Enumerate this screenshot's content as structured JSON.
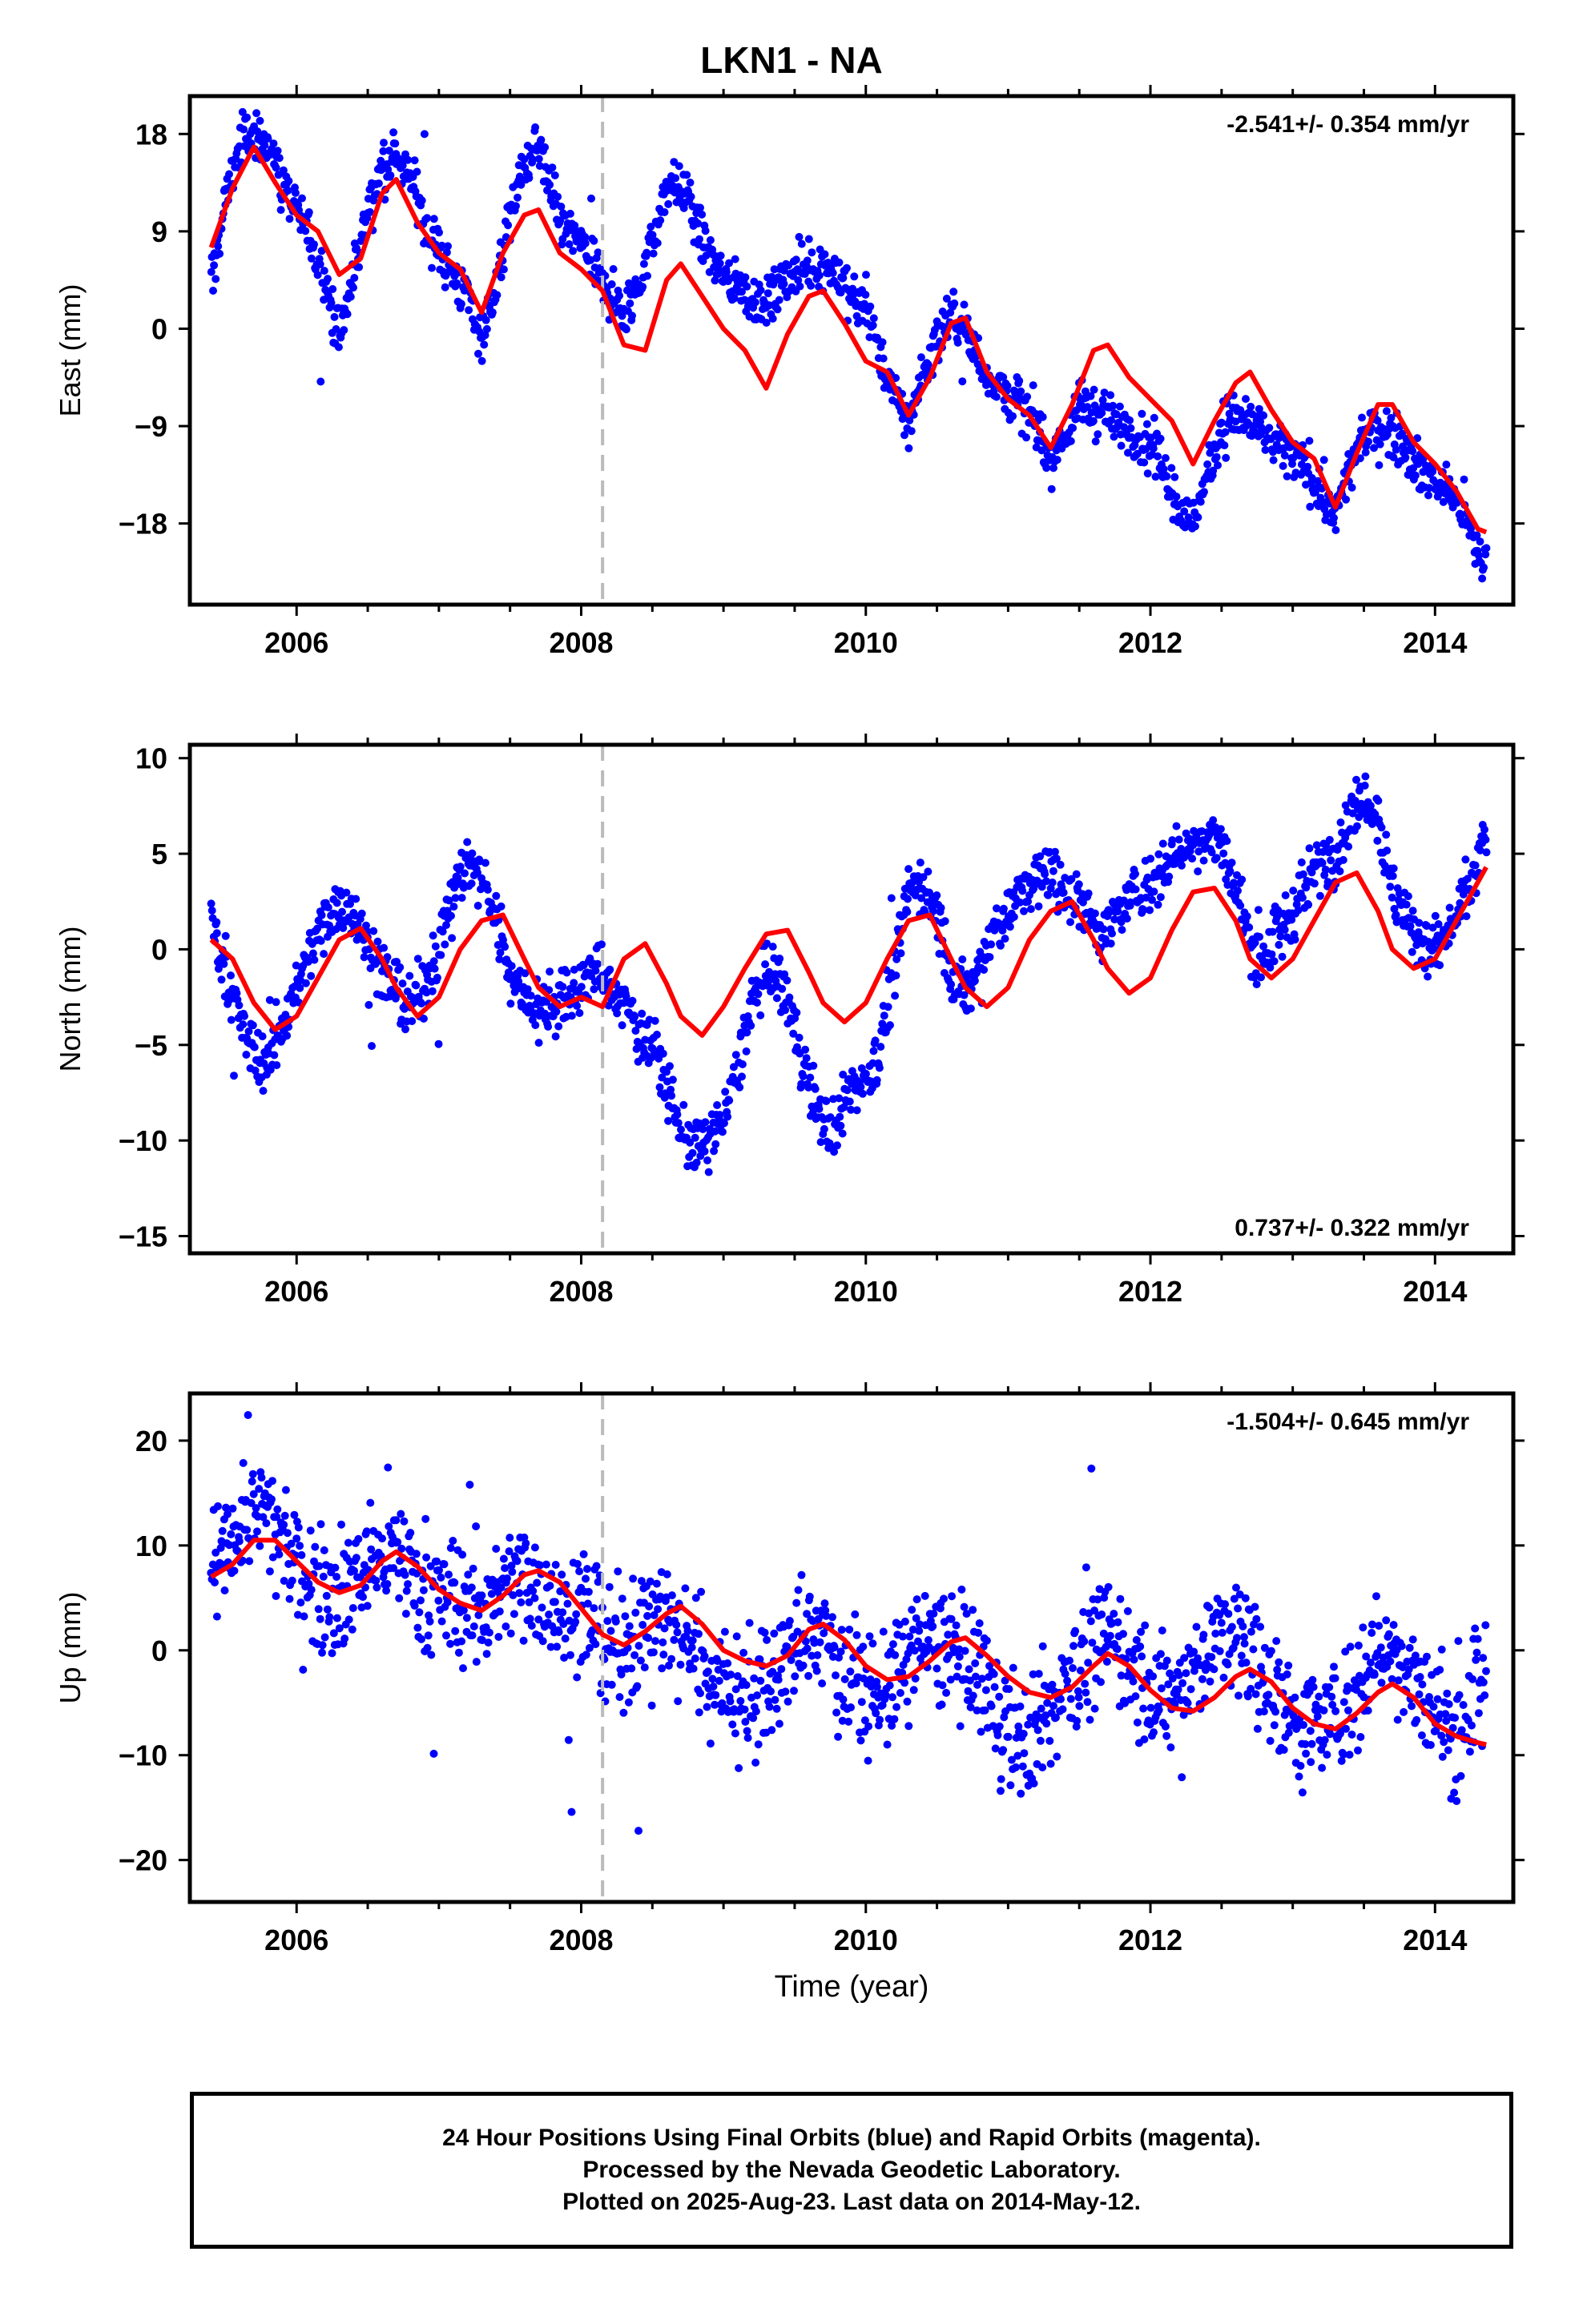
{
  "title": "LKN1 - NA",
  "xlabel": "Time (year)",
  "footer": {
    "line1": "24 Hour Positions Using Final Orbits (blue) and Rapid Orbits (magenta).",
    "line2": "Processed by the Nevada Geodetic Laboratory.",
    "line3": "Plotted on 2025-Aug-23. Last data on 2014-May-12."
  },
  "colors": {
    "data": "#0000ff",
    "model": "#ff0000",
    "break_line": "#bbbbbb",
    "axis": "#000000"
  },
  "chart_data": [
    {
      "type": "scatter",
      "panel": "east",
      "ylabel": "East (mm)",
      "rate_label": "-2.541+/- 0.354 mm/yr",
      "rate_label_position": "top-right",
      "xlim": [
        2005.25,
        2014.55
      ],
      "ylim": [
        -25.5,
        21.5
      ],
      "x_ticks": [
        2006,
        2008,
        2010,
        2012,
        2014
      ],
      "y_ticks": [
        18,
        9,
        0,
        -9,
        -18
      ],
      "y_tick_labels": [
        "18",
        "9",
        "0",
        "-9",
        "-18"
      ],
      "break_epoch": 2008.15,
      "data_range": [
        2005.4,
        2014.36
      ],
      "model_series": {
        "name": "model",
        "x": [
          2005.4,
          2005.55,
          2005.7,
          2005.85,
          2006.0,
          2006.15,
          2006.3,
          2006.45,
          2006.6,
          2006.7,
          2006.85,
          2007.0,
          2007.15,
          2007.3,
          2007.45,
          2007.6,
          2007.7,
          2007.85,
          2008.0,
          2008.15,
          2008.3,
          2008.45,
          2008.6,
          2008.7,
          2008.85,
          2009.0,
          2009.15,
          2009.3,
          2009.45,
          2009.6,
          2009.7,
          2009.85,
          2010.0,
          2010.15,
          2010.3,
          2010.45,
          2010.6,
          2010.7,
          2010.85,
          2011.0,
          2011.15,
          2011.3,
          2011.45,
          2011.6,
          2011.7,
          2011.85,
          2012.0,
          2012.15,
          2012.3,
          2012.45,
          2012.6,
          2012.7,
          2012.85,
          2013.0,
          2013.15,
          2013.3,
          2013.45,
          2013.6,
          2013.7,
          2013.85,
          2014.0,
          2014.15,
          2014.3,
          2014.36
        ],
        "y": [
          7.5,
          13.0,
          16.8,
          13.5,
          10.5,
          9.0,
          5.0,
          6.5,
          12.5,
          13.8,
          9.8,
          7.0,
          5.5,
          1.5,
          7.0,
          10.5,
          11.0,
          7.0,
          5.5,
          3.5,
          -1.5,
          -2.0,
          4.5,
          6.0,
          3.0,
          0.0,
          -2.0,
          -5.5,
          -0.5,
          3.0,
          3.5,
          0.5,
          -3.0,
          -4.0,
          -8.0,
          -4.5,
          0.5,
          1.0,
          -4.0,
          -6.5,
          -8.0,
          -11.0,
          -7.0,
          -2.0,
          -1.5,
          -4.5,
          -6.5,
          -8.5,
          -12.5,
          -8.5,
          -5.0,
          -4.0,
          -7.5,
          -10.5,
          -12.0,
          -16.5,
          -11.5,
          -7.0,
          -7.0,
          -10.5,
          -12.5,
          -15.0,
          -18.5,
          -18.8
        ]
      },
      "data_series": {
        "name": "data",
        "x": [
          2005.4,
          2005.5,
          2005.6,
          2005.7,
          2005.8,
          2005.9,
          2006.0,
          2006.1,
          2006.2,
          2006.3,
          2006.4,
          2006.5,
          2006.6,
          2006.7,
          2006.8,
          2006.9,
          2007.0,
          2007.1,
          2007.2,
          2007.3,
          2007.4,
          2007.5,
          2007.6,
          2007.7,
          2007.8,
          2007.9,
          2008.0,
          2008.1,
          2008.2,
          2008.3,
          2008.4,
          2008.5,
          2008.6,
          2008.7,
          2008.8,
          2008.9,
          2009.0,
          2009.1,
          2009.2,
          2009.3,
          2009.4,
          2009.5,
          2009.6,
          2009.7,
          2009.8,
          2009.9,
          2010.0,
          2010.1,
          2010.2,
          2010.3,
          2010.4,
          2010.5,
          2010.6,
          2010.7,
          2010.8,
          2010.9,
          2011.0,
          2011.1,
          2011.2,
          2011.3,
          2011.4,
          2011.5,
          2011.6,
          2011.7,
          2011.8,
          2011.9,
          2012.0,
          2012.1,
          2012.2,
          2012.3,
          2012.4,
          2012.5,
          2012.6,
          2012.7,
          2012.8,
          2012.9,
          2013.0,
          2013.1,
          2013.2,
          2013.3,
          2013.4,
          2013.5,
          2013.6,
          2013.7,
          2013.8,
          2013.9,
          2014.0,
          2014.1,
          2014.2,
          2014.3,
          2014.36
        ],
        "y": [
          4.0,
          12.0,
          17.0,
          18.0,
          17.0,
          14.0,
          11.0,
          8.0,
          5.0,
          -1.0,
          5.0,
          11.0,
          15.0,
          16.0,
          14.0,
          10.0,
          7.0,
          5.0,
          3.0,
          -1.0,
          4.0,
          10.0,
          15.0,
          17.0,
          12.0,
          9.0,
          8.0,
          5.0,
          3.0,
          1.0,
          4.0,
          8.0,
          13.0,
          13.5,
          10.0,
          7.0,
          5.0,
          4.0,
          3.0,
          2.0,
          4.0,
          5.0,
          6.0,
          6.0,
          5.0,
          3.0,
          2.0,
          -2.0,
          -6.0,
          -9.0,
          -4.0,
          -1.0,
          1.0,
          0.0,
          -3.0,
          -5.0,
          -6.0,
          -7.0,
          -9.0,
          -12.0,
          -10.0,
          -7.0,
          -7.5,
          -8.0,
          -9.0,
          -10.0,
          -11.0,
          -13.0,
          -17.0,
          -18.0,
          -13.0,
          -9.0,
          -8.0,
          -8.5,
          -10.0,
          -11.0,
          -12.0,
          -13.0,
          -15.0,
          -17.5,
          -13.0,
          -10.0,
          -9.0,
          -9.5,
          -11.0,
          -13.0,
          -14.0,
          -15.0,
          -17.0,
          -21.0,
          -21.5
        ]
      }
    },
    {
      "type": "scatter",
      "panel": "north",
      "ylabel": "North (mm)",
      "rate_label": "0.737+/- 0.322 mm/yr",
      "rate_label_position": "bottom-right",
      "xlim": [
        2005.25,
        2014.55
      ],
      "ylim": [
        -15.9,
        10.7
      ],
      "x_ticks": [
        2006,
        2008,
        2010,
        2012,
        2014
      ],
      "y_ticks": [
        10,
        5,
        0,
        -5,
        -10,
        -15
      ],
      "y_tick_labels": [
        "10",
        "5",
        "0",
        "-5",
        "-10",
        "-15"
      ],
      "break_epoch": 2008.15,
      "data_range": [
        2005.4,
        2014.36
      ],
      "model_series": {
        "name": "model",
        "x": [
          2005.4,
          2005.55,
          2005.7,
          2005.85,
          2006.0,
          2006.15,
          2006.3,
          2006.45,
          2006.6,
          2006.7,
          2006.85,
          2007.0,
          2007.15,
          2007.3,
          2007.45,
          2007.6,
          2007.7,
          2007.85,
          2008.0,
          2008.15,
          2008.3,
          2008.45,
          2008.6,
          2008.7,
          2008.85,
          2009.0,
          2009.15,
          2009.3,
          2009.45,
          2009.6,
          2009.7,
          2009.85,
          2010.0,
          2010.15,
          2010.3,
          2010.45,
          2010.6,
          2010.7,
          2010.85,
          2011.0,
          2011.15,
          2011.3,
          2011.45,
          2011.6,
          2011.7,
          2011.85,
          2012.0,
          2012.15,
          2012.3,
          2012.45,
          2012.6,
          2012.7,
          2012.85,
          2013.0,
          2013.15,
          2013.3,
          2013.45,
          2013.6,
          2013.7,
          2013.85,
          2014.0,
          2014.15,
          2014.3,
          2014.36
        ],
        "y": [
          0.5,
          -0.5,
          -2.8,
          -4.2,
          -3.5,
          -1.5,
          0.5,
          1.1,
          -0.5,
          -2.0,
          -3.5,
          -2.5,
          0.0,
          1.5,
          1.8,
          -0.5,
          -2.0,
          -3.0,
          -2.5,
          -3.0,
          -0.5,
          0.3,
          -1.8,
          -3.5,
          -4.5,
          -3.0,
          -1.0,
          0.8,
          1.0,
          -1.2,
          -2.8,
          -3.8,
          -2.8,
          -0.5,
          1.5,
          1.8,
          -0.5,
          -2.0,
          -3.0,
          -2.0,
          0.5,
          2.0,
          2.5,
          0.5,
          -1.0,
          -2.3,
          -1.5,
          1.0,
          3.0,
          3.2,
          1.5,
          -0.5,
          -1.5,
          -0.5,
          1.5,
          3.5,
          4.0,
          2.0,
          0.0,
          -1.0,
          -0.5,
          1.5,
          3.5,
          4.3
        ]
      },
      "data_series": {
        "name": "data",
        "x": [
          2005.4,
          2005.5,
          2005.6,
          2005.7,
          2005.8,
          2005.9,
          2006.0,
          2006.1,
          2006.2,
          2006.3,
          2006.4,
          2006.5,
          2006.6,
          2006.7,
          2006.8,
          2006.9,
          2007.0,
          2007.1,
          2007.2,
          2007.3,
          2007.4,
          2007.5,
          2007.6,
          2007.7,
          2007.8,
          2007.9,
          2008.0,
          2008.1,
          2008.2,
          2008.3,
          2008.4,
          2008.5,
          2008.6,
          2008.7,
          2008.8,
          2008.9,
          2009.0,
          2009.1,
          2009.2,
          2009.3,
          2009.4,
          2009.5,
          2009.6,
          2009.7,
          2009.8,
          2009.9,
          2010.0,
          2010.1,
          2010.2,
          2010.3,
          2010.4,
          2010.5,
          2010.6,
          2010.7,
          2010.8,
          2010.9,
          2011.0,
          2011.1,
          2011.2,
          2011.3,
          2011.4,
          2011.5,
          2011.6,
          2011.7,
          2011.8,
          2011.9,
          2012.0,
          2012.1,
          2012.2,
          2012.3,
          2012.4,
          2012.5,
          2012.6,
          2012.7,
          2012.8,
          2012.9,
          2013.0,
          2013.1,
          2013.2,
          2013.3,
          2013.4,
          2013.5,
          2013.6,
          2013.7,
          2013.8,
          2013.9,
          2014.0,
          2014.1,
          2014.2,
          2014.3,
          2014.36
        ],
        "y": [
          2.0,
          -1.0,
          -4.0,
          -5.5,
          -6.0,
          -4.0,
          -2.0,
          0.0,
          1.5,
          2.5,
          2.0,
          0.5,
          -1.5,
          -2.5,
          -3.0,
          -2.0,
          0.0,
          3.0,
          4.5,
          4.0,
          1.5,
          -1.0,
          -2.5,
          -3.0,
          -3.0,
          -2.5,
          -2.0,
          -1.0,
          -2.0,
          -3.0,
          -4.0,
          -5.0,
          -7.0,
          -9.5,
          -10.5,
          -10.0,
          -9.0,
          -6.0,
          -3.0,
          -1.0,
          -2.0,
          -4.0,
          -7.0,
          -9.0,
          -9.5,
          -7.0,
          -7.0,
          -5.0,
          -1.0,
          3.0,
          3.5,
          2.0,
          -1.5,
          -2.5,
          -1.0,
          1.0,
          2.0,
          3.0,
          3.5,
          4.0,
          3.0,
          2.5,
          1.5,
          1.0,
          2.0,
          3.0,
          3.5,
          4.5,
          5.0,
          5.5,
          6.0,
          5.5,
          3.0,
          0.5,
          -0.5,
          0.5,
          2.0,
          3.5,
          4.5,
          5.0,
          7.0,
          8.5,
          7.0,
          3.0,
          1.5,
          0.5,
          0.0,
          1.0,
          2.5,
          4.5,
          6.5
        ]
      }
    },
    {
      "type": "scatter",
      "panel": "up",
      "ylabel": "Up (mm)",
      "rate_label": "-1.504+/- 0.645 mm/yr",
      "rate_label_position": "top-right",
      "xlim": [
        2005.25,
        2014.55
      ],
      "ylim": [
        -24,
        24.5
      ],
      "x_ticks": [
        2006,
        2008,
        2010,
        2012,
        2014
      ],
      "y_ticks": [
        20,
        10,
        0,
        -10,
        -20
      ],
      "y_tick_labels": [
        "20",
        "10",
        "0",
        "-10",
        "-20"
      ],
      "break_epoch": 2008.15,
      "data_range": [
        2005.4,
        2014.36
      ],
      "model_series": {
        "name": "model",
        "x": [
          2005.4,
          2005.55,
          2005.7,
          2005.85,
          2006.0,
          2006.15,
          2006.3,
          2006.45,
          2006.6,
          2006.7,
          2006.85,
          2007.0,
          2007.15,
          2007.3,
          2007.45,
          2007.6,
          2007.7,
          2007.85,
          2008.0,
          2008.15,
          2008.3,
          2008.45,
          2008.6,
          2008.7,
          2008.85,
          2009.0,
          2009.15,
          2009.3,
          2009.45,
          2009.6,
          2009.7,
          2009.85,
          2010.0,
          2010.15,
          2010.3,
          2010.45,
          2010.6,
          2010.7,
          2010.85,
          2011.0,
          2011.15,
          2011.3,
          2011.45,
          2011.6,
          2011.7,
          2011.85,
          2012.0,
          2012.15,
          2012.3,
          2012.45,
          2012.6,
          2012.7,
          2012.85,
          2013.0,
          2013.15,
          2013.3,
          2013.45,
          2013.6,
          2013.7,
          2013.85,
          2014.0,
          2014.15,
          2014.3,
          2014.36
        ],
        "y": [
          7.0,
          8.2,
          10.5,
          10.5,
          8.5,
          6.5,
          5.5,
          6.2,
          8.5,
          9.4,
          8.0,
          5.8,
          4.5,
          3.8,
          5.2,
          7.2,
          7.6,
          6.5,
          4.0,
          1.5,
          0.5,
          1.8,
          3.5,
          4.2,
          2.5,
          0.0,
          -1.0,
          -1.5,
          -0.5,
          2.0,
          2.5,
          1.0,
          -1.5,
          -2.8,
          -2.5,
          -1.0,
          0.8,
          1.2,
          -0.5,
          -2.5,
          -4.0,
          -4.5,
          -3.5,
          -1.5,
          -0.3,
          -1.5,
          -3.8,
          -5.5,
          -5.8,
          -4.5,
          -2.5,
          -1.8,
          -3.0,
          -5.5,
          -7.0,
          -7.5,
          -6.0,
          -4.0,
          -3.2,
          -4.5,
          -7.0,
          -8.2,
          -8.8,
          -9.0
        ]
      },
      "data_series": {
        "name": "data",
        "x": [
          2005.4,
          2005.5,
          2005.6,
          2005.7,
          2005.8,
          2005.9,
          2006.0,
          2006.1,
          2006.2,
          2006.3,
          2006.4,
          2006.5,
          2006.6,
          2006.7,
          2006.8,
          2006.9,
          2007.0,
          2007.1,
          2007.2,
          2007.3,
          2007.4,
          2007.5,
          2007.6,
          2007.7,
          2007.8,
          2007.9,
          2008.0,
          2008.1,
          2008.2,
          2008.3,
          2008.4,
          2008.5,
          2008.6,
          2008.7,
          2008.8,
          2008.9,
          2009.0,
          2009.1,
          2009.2,
          2009.3,
          2009.4,
          2009.5,
          2009.6,
          2009.7,
          2009.8,
          2009.9,
          2010.0,
          2010.1,
          2010.2,
          2010.3,
          2010.4,
          2010.5,
          2010.6,
          2010.7,
          2010.8,
          2010.9,
          2011.0,
          2011.1,
          2011.2,
          2011.3,
          2011.4,
          2011.5,
          2011.6,
          2011.7,
          2011.8,
          2011.9,
          2012.0,
          2012.1,
          2012.2,
          2012.3,
          2012.4,
          2012.5,
          2012.6,
          2012.7,
          2012.8,
          2012.9,
          2013.0,
          2013.1,
          2013.2,
          2013.3,
          2013.4,
          2013.5,
          2013.6,
          2013.7,
          2013.8,
          2013.9,
          2014.0,
          2014.1,
          2014.2,
          2014.3,
          2014.36
        ],
        "y": [
          7.0,
          10.0,
          13.0,
          14.0,
          12.0,
          10.0,
          8.0,
          7.0,
          6.0,
          5.5,
          7.0,
          8.0,
          9.0,
          9.0,
          8.0,
          6.0,
          4.0,
          5.0,
          4.0,
          3.5,
          5.0,
          7.0,
          7.0,
          6.0,
          5.0,
          4.0,
          3.0,
          1.0,
          0.0,
          0.0,
          1.5,
          3.0,
          3.0,
          2.0,
          0.0,
          -2.0,
          -3.0,
          -4.0,
          -4.5,
          -4.0,
          -2.0,
          0.0,
          1.5,
          1.0,
          -1.0,
          -2.5,
          -4.0,
          -4.5,
          -3.0,
          -1.0,
          0.5,
          1.0,
          0.0,
          -1.5,
          -3.0,
          -5.0,
          -7.0,
          -8.5,
          -8.0,
          -6.0,
          -3.0,
          -1.0,
          0.5,
          1.5,
          0.5,
          -2.0,
          -4.0,
          -5.0,
          -4.5,
          -2.0,
          0.5,
          1.5,
          1.0,
          -0.5,
          -2.5,
          -4.5,
          -6.0,
          -7.0,
          -7.5,
          -6.5,
          -4.5,
          -2.0,
          -0.5,
          0.0,
          -1.5,
          -4.0,
          -6.0,
          -7.0,
          -7.5,
          -5.0,
          -3.5
        ]
      }
    }
  ]
}
